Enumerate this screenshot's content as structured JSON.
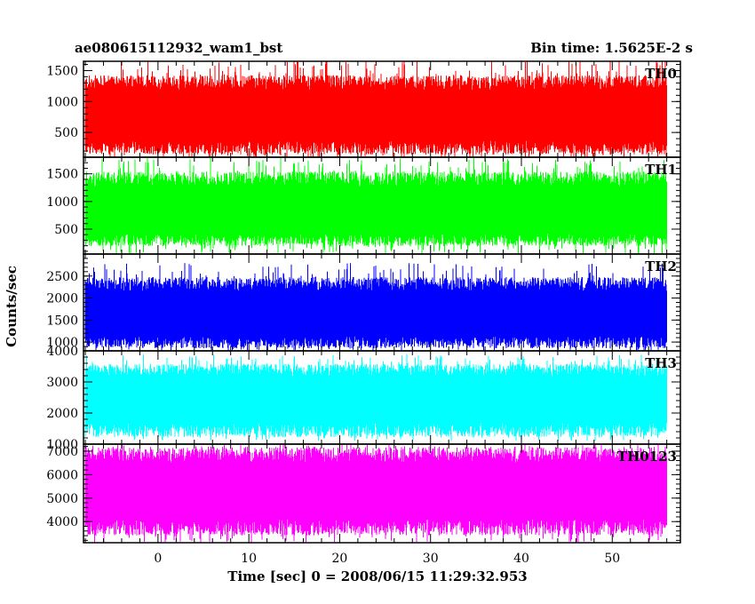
{
  "header": {
    "title": "ae080615112932_wam1_bst",
    "bin_time": "Bin time: 1.5625E-2 s"
  },
  "chart_data": {
    "type": "line",
    "title": "ae080615112932_wam1_bst",
    "xlabel": "Time [sec] 0 = 2008/06/15 11:29:32.953",
    "ylabel": "Counts/sec",
    "xlim": [
      -8.2,
      57.5
    ],
    "xticks": [
      0,
      10,
      20,
      30,
      40,
      50
    ],
    "x_range_data": [
      -8.0,
      56.0
    ],
    "panels": [
      {
        "name": "TH0",
        "color": "#ff0000",
        "ylim": [
          100,
          1650
        ],
        "yticks": [
          500,
          1000,
          1500
        ],
        "band": {
          "median": 750,
          "low": 300,
          "high": 1250,
          "min": 60,
          "max": 1700
        }
      },
      {
        "name": "TH1",
        "color": "#00ff00",
        "ylim": [
          50,
          1800
        ],
        "yticks": [
          500,
          1000,
          1500
        ],
        "band": {
          "median": 800,
          "low": 350,
          "high": 1350,
          "min": 50,
          "max": 1800
        }
      },
      {
        "name": "TH2",
        "color": "#0000ff",
        "ylim": [
          800,
          3000
        ],
        "yticks": [
          1000,
          1500,
          2000,
          2500
        ],
        "band": {
          "median": 1600,
          "low": 1050,
          "high": 2250,
          "min": 800,
          "max": 2800
        }
      },
      {
        "name": "TH3",
        "color": "#00ffff",
        "ylim": [
          1000,
          4000
        ],
        "yticks": [
          1000,
          2000,
          3000,
          4000
        ],
        "band": {
          "median": 2500,
          "low": 1550,
          "high": 3300,
          "min": 1100,
          "max": 3900
        }
      },
      {
        "name": "TH0123",
        "color": "#ff00ff",
        "ylim": [
          3100,
          7300
        ],
        "yticks": [
          4000,
          5000,
          6000,
          7000
        ],
        "band": {
          "median": 5300,
          "low": 3900,
          "high": 6700,
          "min": 3100,
          "max": 7300
        }
      }
    ]
  }
}
